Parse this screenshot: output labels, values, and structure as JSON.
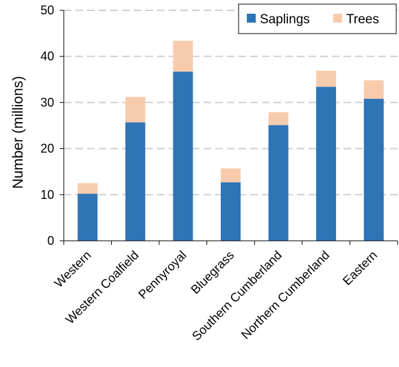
{
  "chart_data": {
    "type": "bar",
    "stacked": true,
    "title": "",
    "xlabel": "",
    "ylabel": "Number (millions)",
    "ylim": [
      0,
      50
    ],
    "yticks": [
      0,
      10,
      20,
      30,
      40,
      50
    ],
    "grid": "horizontal dashed",
    "legend_position": "top-right",
    "categories": [
      "Western",
      "Western Coalfield",
      "Pennyroyal",
      "Bluegrass",
      "Southern Cumberland",
      "Northern Cumberland",
      "Eastern"
    ],
    "series": [
      {
        "name": "Saplings",
        "color": "#2e75b6",
        "values": [
          10.2,
          25.7,
          36.7,
          12.7,
          25.1,
          33.4,
          30.8
        ]
      },
      {
        "name": "Trees",
        "color": "#f8cbad",
        "values": [
          2.3,
          5.5,
          6.7,
          3.0,
          2.8,
          3.5,
          4.0
        ]
      }
    ]
  }
}
